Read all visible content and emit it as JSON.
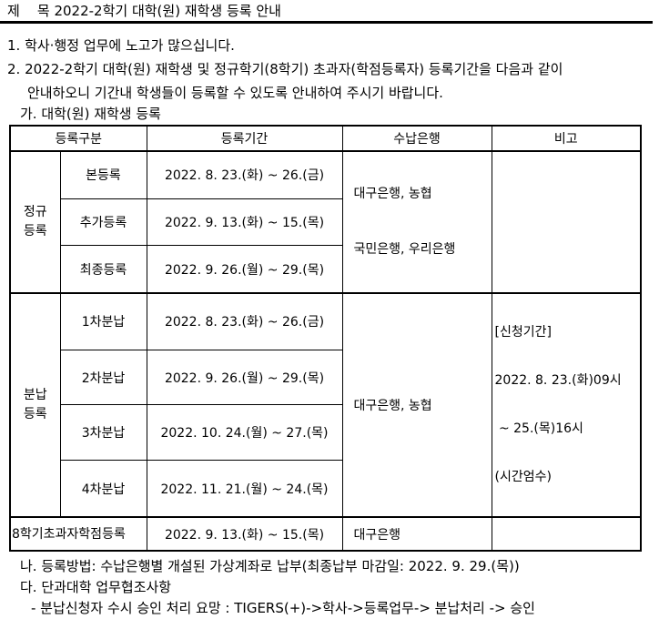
{
  "title": "제    목 2022-2학기 대학(원) 재학생 등록 안내",
  "body": {
    "line1": "1. 학사·행정 업무에 노고가 많으십니다.",
    "line2a": "2. 2022-2학기 대학(원) 재학생 및 정규학기(8학기) 초과자(학점등록자) 등록기간을 다음과 같이",
    "line2b": "안내하오니 기간내 학생들이 등록할 수 있도록 안내하여 주시기 바랍니다.",
    "item_ga": "가. 대학(원) 재학생 등록",
    "item_na": "나. 등록방법: 수납은행별 개설된 가상계좌로 납부(최종납부 마감일: 2022. 9. 29.(목))",
    "item_da": "다. 단과대학 업무협조사항",
    "item_dash": "- 분납신청자 수시 승인 처리 요망 : TIGERS(+)->학사->등록업무-> 분납처리 -> 승인"
  },
  "table": {
    "headers": {
      "category": "등록구분",
      "period": "등록기간",
      "bank": "수납은행",
      "note": "비고"
    },
    "regular": {
      "label_lines": [
        "정규",
        "등록"
      ],
      "rows": [
        {
          "type": "본등록",
          "period": "2022. 8. 23.(화) ~ 26.(금)"
        },
        {
          "type": "추가등록",
          "period": "2022. 9. 13.(화) ~ 15.(목)"
        },
        {
          "type": "최종등록",
          "period": "2022. 9. 26.(월) ~ 29.(목)"
        }
      ],
      "bank_lines": [
        "대구은행, 농협",
        "국민은행, 우리은행"
      ],
      "note": ""
    },
    "installment": {
      "label_lines": [
        "분납",
        "등록"
      ],
      "rows": [
        {
          "type": "1차분납",
          "period": "2022. 8. 23.(화) ~ 26.(금)"
        },
        {
          "type": "2차분납",
          "period": "2022. 9. 26.(월) ~ 29.(목)"
        },
        {
          "type": "3차분납",
          "period": "2022. 10. 24.(월) ~ 27.(목)"
        },
        {
          "type": "4차분납",
          "period": "2022. 11. 21.(월) ~ 24.(목)"
        }
      ],
      "bank": "대구은행, 농협",
      "note_lines": [
        "[신청기간]",
        "2022. 8. 23.(화)09시",
        " ~ 25.(목)16시",
        "(시간엄수)"
      ]
    },
    "overflow": {
      "label": "8학기초과자학점등록",
      "period": "2022. 9. 13.(화) ~ 15.(목)",
      "bank": "대구은행",
      "note": ""
    }
  },
  "colors": {
    "text": "#000000",
    "background": "#ffffff",
    "border": "#000000"
  }
}
